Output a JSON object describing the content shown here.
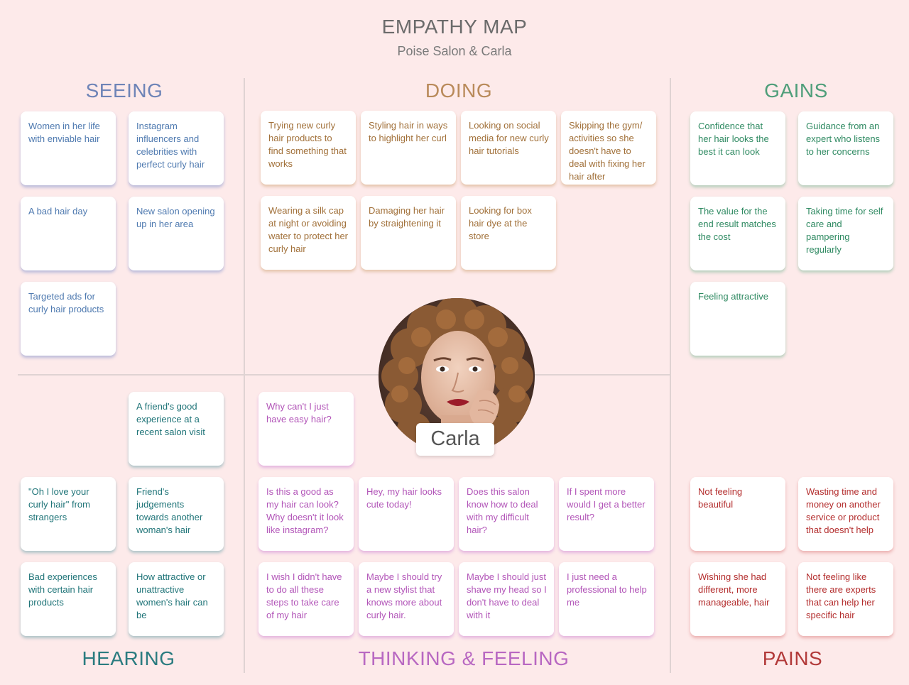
{
  "header": {
    "title": "EMPATHY MAP",
    "subtitle": "Poise Salon & Carla"
  },
  "sections": {
    "seeing": "SEEING",
    "doing": "DOING",
    "gains": "GAINS",
    "hearing": "HEARING",
    "thinking": "THINKING & FEELING",
    "pains": "PAINS"
  },
  "persona": {
    "name": "Carla"
  },
  "seeing": [
    "Women in her life with enviable hair",
    "Instagram influencers and celebrities with perfect curly hair",
    "A bad hair day",
    "New salon opening up in her area",
    "Targeted ads for curly hair products"
  ],
  "doing": [
    "Trying new curly hair products to find something that works",
    "Styling hair in ways to highlight her curl",
    "Looking on social media for new curly hair tutorials",
    "Skipping the gym/ activities so she doesn't have to deal with fixing her hair after",
    "Wearing a silk cap at night or avoiding water to protect her curly hair",
    "Damaging her hair by straightening it",
    "Looking for box hair dye at the store"
  ],
  "gains": [
    "Confidence that her hair looks the best it can look",
    "Guidance from an expert who listens to her concerns",
    "The value for the end result matches the cost",
    "Taking time for self care and pampering regularly",
    "Feeling attractive"
  ],
  "hearing": [
    "A friend's good experience at a recent salon visit",
    "\"Oh I love your curly hair\" from strangers",
    "Friend's judgements towards another woman's hair",
    "Bad experiences with certain hair products",
    "How attractive or unattractive women's hair can be"
  ],
  "thinking": [
    "Why can't I just have easy hair?",
    "Is this a good as my hair can look? Why doesn't it look like instagram?",
    "Hey, my hair looks cute today!",
    "Does this salon know how to deal with my difficult hair?",
    "If I spent more would I get a better result?",
    "I wish I didn't have to do all these steps to take care of my hair",
    "Maybe I should try a new stylist that knows more about curly hair.",
    "Maybe I should just shave my head so I don't have to deal with it",
    "I just need a professional to help me"
  ],
  "pains": [
    "Not feeling beautiful",
    "Wasting time and money on another service or product that doesn't help",
    "Wishing she had different, more manageable, hair",
    "Not feeling like there are experts that can help her specific hair"
  ]
}
